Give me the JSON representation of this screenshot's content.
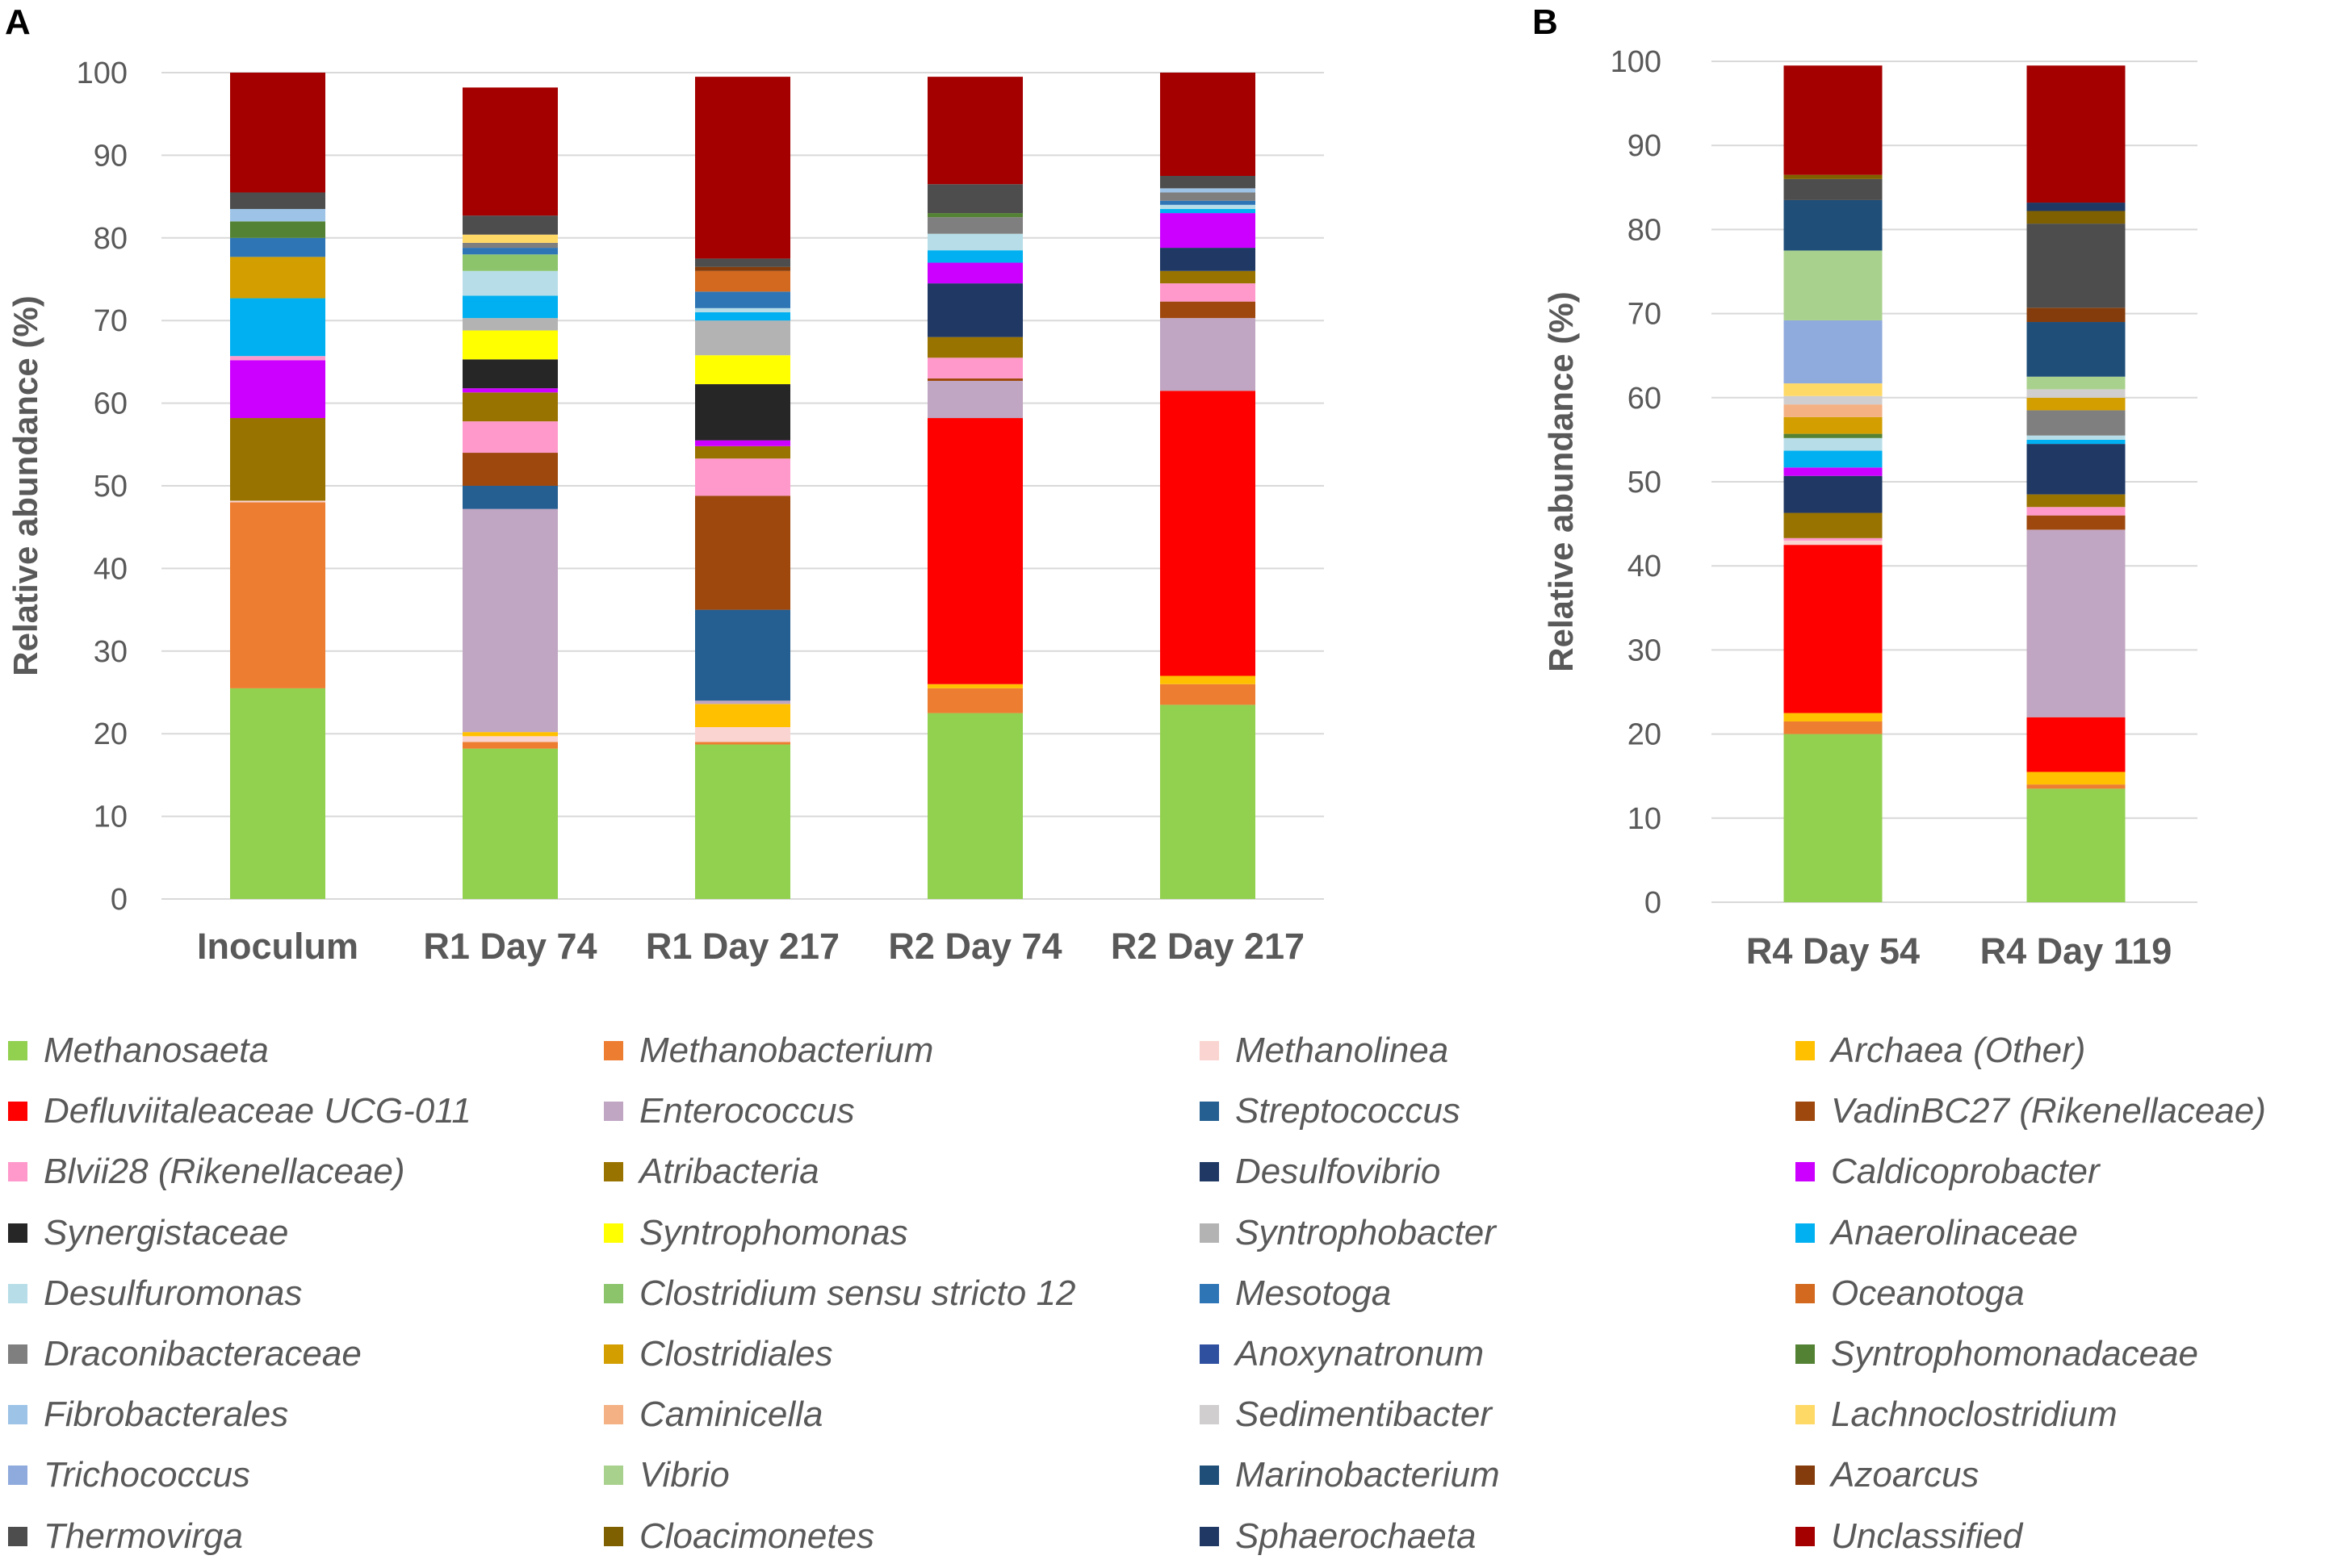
{
  "taxa": [
    {
      "name": "Methanosaeta",
      "color": "#92d050"
    },
    {
      "name": "Methanobacterium",
      "color": "#ed7d31"
    },
    {
      "name": "Methanolinea",
      "color": "#fad4d0"
    },
    {
      "name": "Archaea (Other)",
      "color": "#ffc000"
    },
    {
      "name": "Defluviitaleaceae UCG-011",
      "color": "#ff0000"
    },
    {
      "name": "Enterococcus",
      "color": "#c0a6c2"
    },
    {
      "name": "Streptococcus",
      "color": "#255e91"
    },
    {
      "name": "VadinBC27 (Rikenellaceae)",
      "color": "#9e480e"
    },
    {
      "name": "Blvii28 (Rikenellaceae)",
      "color": "#ff99cc"
    },
    {
      "name": "Atribacteria",
      "color": "#997300"
    },
    {
      "name": "Desulfovibrio",
      "color": "#203864"
    },
    {
      "name": "Caldicoprobacter",
      "color": "#cc00ff"
    },
    {
      "name": "Synergistaceae",
      "color": "#262626"
    },
    {
      "name": "Syntrophomonas",
      "color": "#ffff00"
    },
    {
      "name": "Syntrophobacter",
      "color": "#b3b3b3"
    },
    {
      "name": "Anaerolinaceae",
      "color": "#00b0f0"
    },
    {
      "name": "Desulfuromonas",
      "color": "#b7dee8"
    },
    {
      "name": "Clostridium sensu stricto 12",
      "color": "#8cc46c"
    },
    {
      "name": "Mesotoga",
      "color": "#2e75b6"
    },
    {
      "name": "Oceanotoga",
      "color": "#d2691e"
    },
    {
      "name": "Draconibacteraceae",
      "color": "#7f7f7f"
    },
    {
      "name": "Clostridiales",
      "color": "#d39e00"
    },
    {
      "name": "Anoxynatronum",
      "color": "#2f4f9f"
    },
    {
      "name": "Syntrophomonadaceae",
      "color": "#548235"
    },
    {
      "name": "Fibrobacterales",
      "color": "#9dc3e6"
    },
    {
      "name": "Caminicella",
      "color": "#f4b183"
    },
    {
      "name": "Sedimentibacter",
      "color": "#d0cece"
    },
    {
      "name": "Lachnoclostridium",
      "color": "#ffd966"
    },
    {
      "name": "Trichococcus",
      "color": "#8faadc"
    },
    {
      "name": "Vibrio",
      "color": "#a9d18e"
    },
    {
      "name": "Marinobacterium",
      "color": "#1f4e79"
    },
    {
      "name": "Azoarcus",
      "color": "#843c0c"
    },
    {
      "name": "Thermovirga",
      "color": "#4d4d4d"
    },
    {
      "name": "Cloacimonetes",
      "color": "#7f6000"
    },
    {
      "name": "Sphaerochaeta",
      "color": "#1f3864"
    },
    {
      "name": "Unclassified",
      "color": "#a50000"
    }
  ],
  "chart_data": [
    {
      "type": "bar",
      "stacked": true,
      "panel": "A",
      "ylabel": "Relative abundance (%)",
      "ylim": [
        0,
        100
      ],
      "yticks": [
        0,
        10,
        20,
        30,
        40,
        50,
        60,
        70,
        80,
        90,
        100
      ],
      "categories": [
        "Inoculum",
        "R1 Day 74",
        "R1 Day 217",
        "R2 Day 74",
        "R2 Day 217"
      ],
      "stacks": [
        [
          {
            "taxon": "Methanosaeta",
            "value": 25.5
          },
          {
            "taxon": "Methanobacterium",
            "value": 22.5
          },
          {
            "taxon": "Methanolinea",
            "value": 0.2
          },
          {
            "taxon": "Atribacteria",
            "value": 10.0
          },
          {
            "taxon": "Caldicoprobacter",
            "value": 7.0
          },
          {
            "taxon": "Blvii28 (Rikenellaceae)",
            "value": 0.5
          },
          {
            "taxon": "Anaerolinaceae",
            "value": 7.0
          },
          {
            "taxon": "Clostridiales",
            "value": 5.0
          },
          {
            "taxon": "Mesotoga",
            "value": 2.3
          },
          {
            "taxon": "Syntrophomonadaceae",
            "value": 2.0
          },
          {
            "taxon": "Fibrobacterales",
            "value": 1.5
          },
          {
            "taxon": "Thermovirga",
            "value": 2.0
          },
          {
            "taxon": "Unclassified",
            "value": 14.5
          }
        ],
        [
          {
            "taxon": "Methanosaeta",
            "value": 18.2
          },
          {
            "taxon": "Methanobacterium",
            "value": 0.8
          },
          {
            "taxon": "Methanolinea",
            "value": 0.7
          },
          {
            "taxon": "Archaea (Other)",
            "value": 0.5
          },
          {
            "taxon": "Enterococcus",
            "value": 27.0
          },
          {
            "taxon": "Streptococcus",
            "value": 2.8
          },
          {
            "taxon": "VadinBC27 (Rikenellaceae)",
            "value": 4.0
          },
          {
            "taxon": "Blvii28 (Rikenellaceae)",
            "value": 3.8
          },
          {
            "taxon": "Atribacteria",
            "value": 3.5
          },
          {
            "taxon": "Caldicoprobacter",
            "value": 0.5
          },
          {
            "taxon": "Synergistaceae",
            "value": 3.5
          },
          {
            "taxon": "Syntrophomonas",
            "value": 3.5
          },
          {
            "taxon": "Syntrophobacter",
            "value": 1.5
          },
          {
            "taxon": "Anaerolinaceae",
            "value": 2.7
          },
          {
            "taxon": "Desulfuromonas",
            "value": 3.0
          },
          {
            "taxon": "Clostridium sensu stricto 12",
            "value": 2.0
          },
          {
            "taxon": "Mesotoga",
            "value": 0.8
          },
          {
            "taxon": "Draconibacteraceae",
            "value": 0.6
          },
          {
            "taxon": "Lachnoclostridium",
            "value": 1.0
          },
          {
            "taxon": "Thermovirga",
            "value": 2.3
          },
          {
            "taxon": "Unclassified",
            "value": 15.5
          }
        ],
        [
          {
            "taxon": "Methanosaeta",
            "value": 18.7
          },
          {
            "taxon": "Methanobacterium",
            "value": 0.3
          },
          {
            "taxon": "Methanolinea",
            "value": 1.8
          },
          {
            "taxon": "Archaea (Other)",
            "value": 2.8
          },
          {
            "taxon": "Enterococcus",
            "value": 0.4
          },
          {
            "taxon": "Streptococcus",
            "value": 11.0
          },
          {
            "taxon": "VadinBC27 (Rikenellaceae)",
            "value": 13.8
          },
          {
            "taxon": "Blvii28 (Rikenellaceae)",
            "value": 4.5
          },
          {
            "taxon": "Atribacteria",
            "value": 1.5
          },
          {
            "taxon": "Caldicoprobacter",
            "value": 0.7
          },
          {
            "taxon": "Synergistaceae",
            "value": 6.8
          },
          {
            "taxon": "Syntrophomonas",
            "value": 3.5
          },
          {
            "taxon": "Syntrophobacter",
            "value": 4.2
          },
          {
            "taxon": "Anaerolinaceae",
            "value": 1.0
          },
          {
            "taxon": "Desulfuromonas",
            "value": 0.5
          },
          {
            "taxon": "Mesotoga",
            "value": 2.0
          },
          {
            "taxon": "Oceanotoga",
            "value": 2.5
          },
          {
            "taxon": "Azoarcus",
            "value": 0.5
          },
          {
            "taxon": "Thermovirga",
            "value": 1.0
          },
          {
            "taxon": "Unclassified",
            "value": 22.0
          }
        ],
        [
          {
            "taxon": "Methanosaeta",
            "value": 22.5
          },
          {
            "taxon": "Methanobacterium",
            "value": 3.0
          },
          {
            "taxon": "Archaea (Other)",
            "value": 0.5
          },
          {
            "taxon": "Defluviitaleaceae UCG-011",
            "value": 32.2
          },
          {
            "taxon": "Enterococcus",
            "value": 4.5
          },
          {
            "taxon": "VadinBC27 (Rikenellaceae)",
            "value": 0.3
          },
          {
            "taxon": "Blvii28 (Rikenellaceae)",
            "value": 2.5
          },
          {
            "taxon": "Atribacteria",
            "value": 2.5
          },
          {
            "taxon": "Desulfovibrio",
            "value": 6.5
          },
          {
            "taxon": "Caldicoprobacter",
            "value": 2.5
          },
          {
            "taxon": "Anaerolinaceae",
            "value": 1.5
          },
          {
            "taxon": "Desulfuromonas",
            "value": 2.0
          },
          {
            "taxon": "Draconibacteraceae",
            "value": 2.0
          },
          {
            "taxon": "Syntrophomonadaceae",
            "value": 0.5
          },
          {
            "taxon": "Thermovirga",
            "value": 3.5
          },
          {
            "taxon": "Unclassified",
            "value": 13.0
          }
        ],
        [
          {
            "taxon": "Methanosaeta",
            "value": 23.5
          },
          {
            "taxon": "Methanobacterium",
            "value": 2.5
          },
          {
            "taxon": "Archaea (Other)",
            "value": 1.0
          },
          {
            "taxon": "Defluviitaleaceae UCG-011",
            "value": 34.5
          },
          {
            "taxon": "Enterococcus",
            "value": 8.8
          },
          {
            "taxon": "VadinBC27 (Rikenellaceae)",
            "value": 2.0
          },
          {
            "taxon": "Blvii28 (Rikenellaceae)",
            "value": 2.2
          },
          {
            "taxon": "Atribacteria",
            "value": 1.5
          },
          {
            "taxon": "Desulfovibrio",
            "value": 2.8
          },
          {
            "taxon": "Caldicoprobacter",
            "value": 4.2
          },
          {
            "taxon": "Anaerolinaceae",
            "value": 0.5
          },
          {
            "taxon": "Desulfuromonas",
            "value": 0.5
          },
          {
            "taxon": "Mesotoga",
            "value": 0.5
          },
          {
            "taxon": "Draconibacteraceae",
            "value": 1.0
          },
          {
            "taxon": "Fibrobacterales",
            "value": 0.5
          },
          {
            "taxon": "Thermovirga",
            "value": 1.5
          },
          {
            "taxon": "Unclassified",
            "value": 12.5
          }
        ]
      ]
    },
    {
      "type": "bar",
      "stacked": true,
      "panel": "B",
      "ylabel": "Relative abundance (%)",
      "ylim": [
        0,
        100
      ],
      "yticks": [
        0,
        10,
        20,
        30,
        40,
        50,
        60,
        70,
        80,
        90,
        100
      ],
      "categories": [
        "R4  Day 54",
        "R4 Day 119"
      ],
      "stacks": [
        [
          {
            "taxon": "Methanosaeta",
            "value": 20.0
          },
          {
            "taxon": "Methanobacterium",
            "value": 1.5
          },
          {
            "taxon": "Archaea (Other)",
            "value": 1.0
          },
          {
            "taxon": "Defluviitaleaceae UCG-011",
            "value": 20.0
          },
          {
            "taxon": "Methanolinea",
            "value": 0.5
          },
          {
            "taxon": "Blvii28 (Rikenellaceae)",
            "value": 0.3
          },
          {
            "taxon": "Atribacteria",
            "value": 3.0
          },
          {
            "taxon": "Desulfovibrio",
            "value": 4.4
          },
          {
            "taxon": "Caldicoprobacter",
            "value": 1.0
          },
          {
            "taxon": "Anaerolinaceae",
            "value": 2.0
          },
          {
            "taxon": "Desulfuromonas",
            "value": 1.5
          },
          {
            "taxon": "Syntrophomonadaceae",
            "value": 0.5
          },
          {
            "taxon": "Clostridiales",
            "value": 2.0
          },
          {
            "taxon": "Caminicella",
            "value": 1.5
          },
          {
            "taxon": "Sedimentibacter",
            "value": 1.0
          },
          {
            "taxon": "Lachnoclostridium",
            "value": 1.5
          },
          {
            "taxon": "Trichococcus",
            "value": 7.5
          },
          {
            "taxon": "Vibrio",
            "value": 8.3
          },
          {
            "taxon": "Marinobacterium",
            "value": 6.0
          },
          {
            "taxon": "Thermovirga",
            "value": 2.5
          },
          {
            "taxon": "Cloacimonetes",
            "value": 0.5
          },
          {
            "taxon": "Unclassified",
            "value": 13.0
          }
        ],
        [
          {
            "taxon": "Methanosaeta",
            "value": 13.5
          },
          {
            "taxon": "Methanobacterium",
            "value": 0.5
          },
          {
            "taxon": "Archaea (Other)",
            "value": 1.5
          },
          {
            "taxon": "Defluviitaleaceae UCG-011",
            "value": 6.5
          },
          {
            "taxon": "Enterococcus",
            "value": 22.3
          },
          {
            "taxon": "VadinBC27 (Rikenellaceae)",
            "value": 1.7
          },
          {
            "taxon": "Blvii28 (Rikenellaceae)",
            "value": 1.0
          },
          {
            "taxon": "Atribacteria",
            "value": 1.5
          },
          {
            "taxon": "Desulfovibrio",
            "value": 6.0
          },
          {
            "taxon": "Anaerolinaceae",
            "value": 0.5
          },
          {
            "taxon": "Desulfuromonas",
            "value": 0.5
          },
          {
            "taxon": "Draconibacteraceae",
            "value": 3.0
          },
          {
            "taxon": "Clostridiales",
            "value": 1.5
          },
          {
            "taxon": "Sedimentibacter",
            "value": 1.0
          },
          {
            "taxon": "Vibrio",
            "value": 1.5
          },
          {
            "taxon": "Marinobacterium",
            "value": 6.5
          },
          {
            "taxon": "Azoarcus",
            "value": 1.7
          },
          {
            "taxon": "Thermovirga",
            "value": 10.0
          },
          {
            "taxon": "Cloacimonetes",
            "value": 1.5
          },
          {
            "taxon": "Sphaerochaeta",
            "value": 1.0
          },
          {
            "taxon": "Unclassified",
            "value": 16.3
          }
        ]
      ]
    }
  ]
}
